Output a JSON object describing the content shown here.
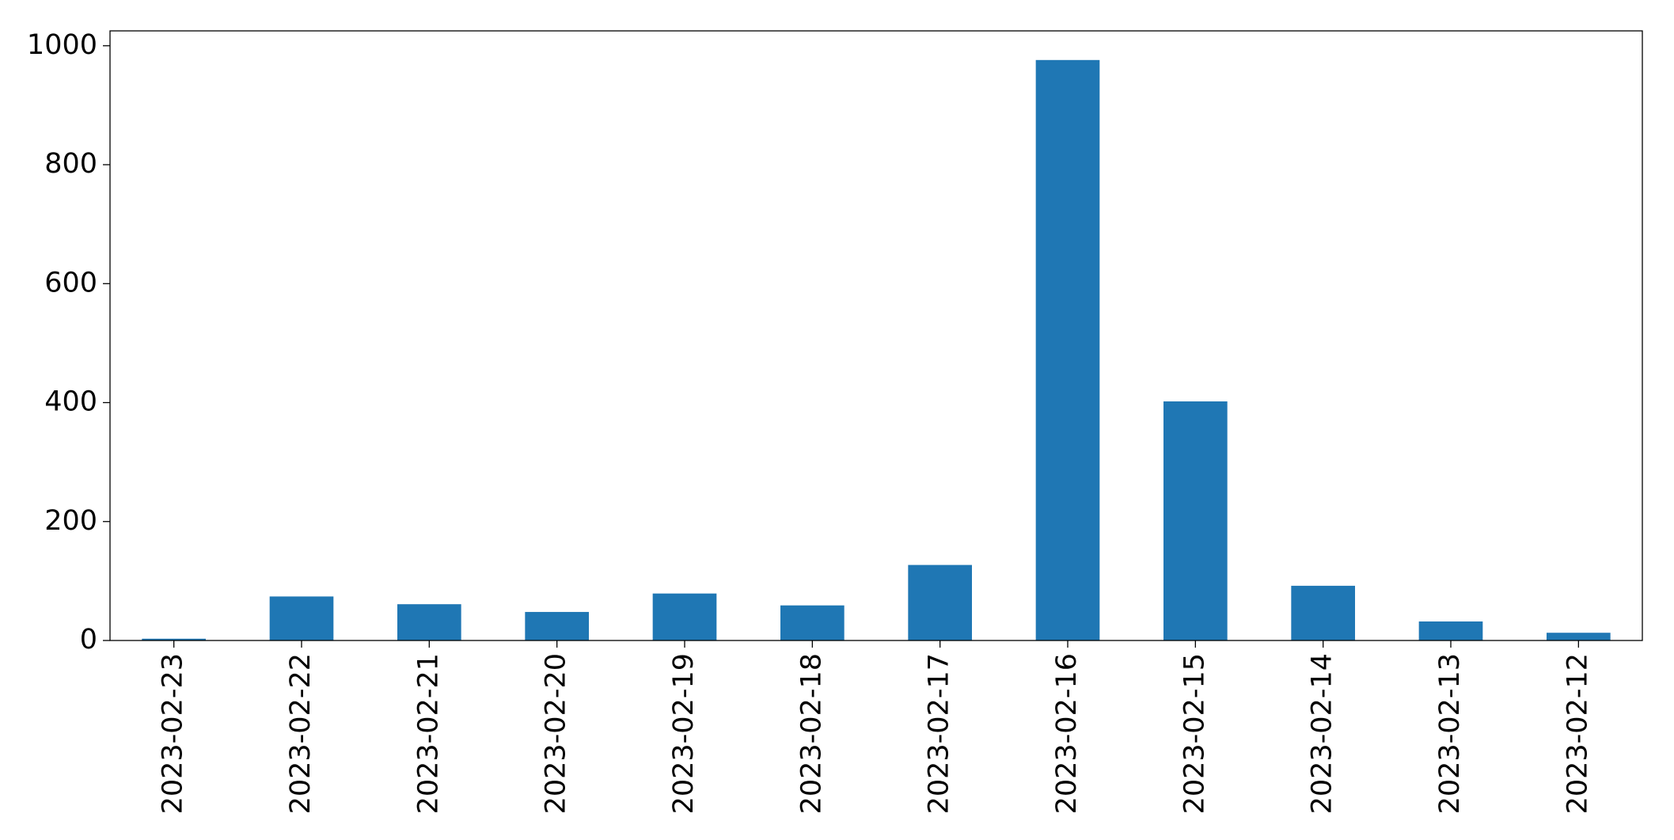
{
  "chart_data": {
    "type": "bar",
    "categories": [
      "2023-02-23",
      "2023-02-22",
      "2023-02-21",
      "2023-02-20",
      "2023-02-19",
      "2023-02-18",
      "2023-02-17",
      "2023-02-16",
      "2023-02-15",
      "2023-02-14",
      "2023-02-13",
      "2023-02-12"
    ],
    "values": [
      3,
      74,
      61,
      48,
      79,
      59,
      127,
      976,
      402,
      92,
      32,
      13
    ],
    "color": "#1f77b4",
    "ylim": [
      0,
      1025
    ],
    "yticks": [
      0,
      200,
      400,
      600,
      800,
      1000
    ],
    "grid": false
  }
}
